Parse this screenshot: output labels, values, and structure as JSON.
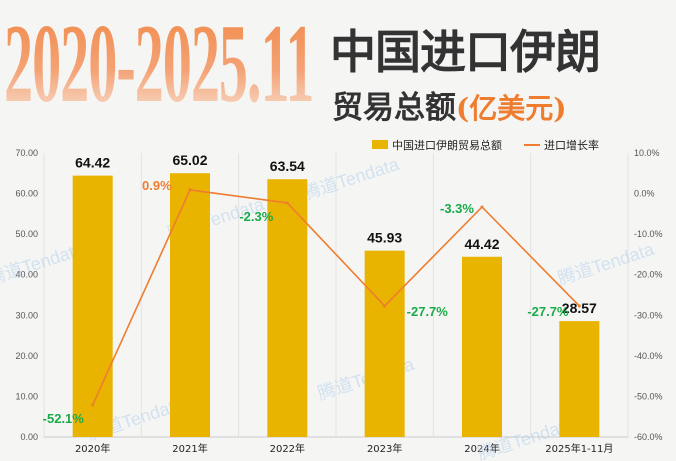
{
  "title": {
    "period": "2020-2025.11",
    "line1": "中国进口伊朗",
    "line2": "贸易总额",
    "unit": "(亿美元)"
  },
  "watermark": "腾道Tendata",
  "colors": {
    "bar": "#e8b400",
    "line": "#ef7d2f",
    "positive_label": "#ef7d2f",
    "negative_label": "#1aaa4a"
  },
  "chart_data": {
    "type": "bar+line",
    "categories": [
      "2020年",
      "2021年",
      "2022年",
      "2023年",
      "2024年",
      "2025年1-11月"
    ],
    "series": [
      {
        "name": "中国进口伊朗贸易总额",
        "type": "bar",
        "axis": "left",
        "values": [
          64.42,
          65.02,
          63.54,
          45.93,
          44.42,
          28.57
        ],
        "labels": [
          "64.42",
          "65.02",
          "63.54",
          "45.93",
          "44.42",
          "28.57"
        ]
      },
      {
        "name": "进口增长率",
        "type": "line",
        "axis": "right",
        "values": [
          -52.1,
          0.9,
          -2.3,
          -27.7,
          -3.3,
          -27.7
        ],
        "labels": [
          "-52.1%",
          "0.9%",
          "-2.3%",
          "-27.7%",
          "-3.3%",
          "-27.7%"
        ]
      }
    ],
    "y_left": {
      "range": [
        0,
        70
      ],
      "ticks": [
        "0.00",
        "10.00",
        "20.00",
        "30.00",
        "40.00",
        "50.00",
        "60.00",
        "70.00"
      ]
    },
    "y_right": {
      "range": [
        -60,
        10
      ],
      "ticks": [
        "-60.0%",
        "-50.0%",
        "-40.0%",
        "-30.0%",
        "-20.0%",
        "-10.0%",
        "0.0%",
        "10.0%"
      ]
    },
    "grid": "vertical",
    "legend": "top-right"
  }
}
